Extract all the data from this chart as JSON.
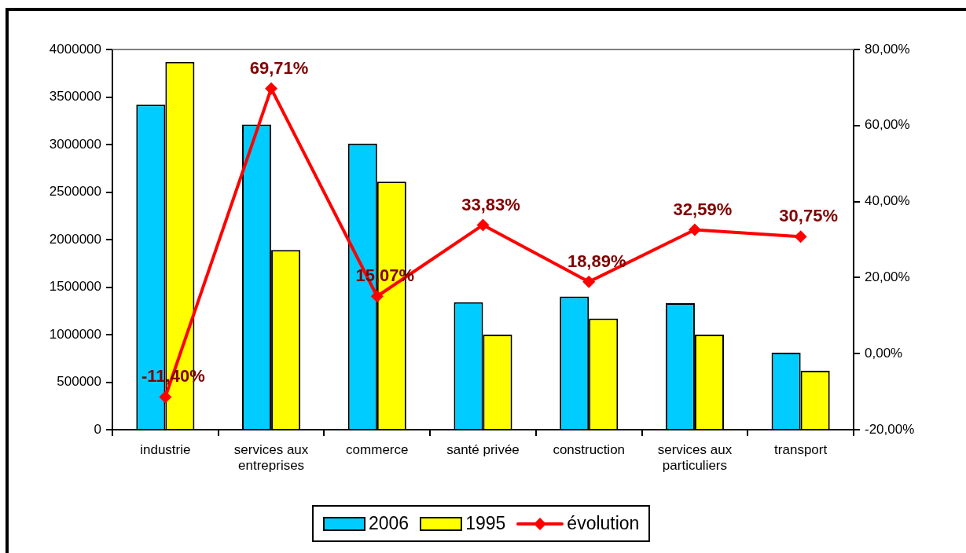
{
  "chart_data": {
    "type": "bar",
    "categories": [
      "industrie",
      "services aux entreprises",
      "commerce",
      "santé privée",
      "construction",
      "services aux particuliers",
      "transport"
    ],
    "series": [
      {
        "name": "2006",
        "color": "#00ccff",
        "values": [
          3420000,
          3210000,
          3010000,
          1340000,
          1400000,
          1330000,
          810000
        ]
      },
      {
        "name": "1995",
        "color": "#ffff00",
        "values": [
          3870000,
          1890000,
          2610000,
          1000000,
          1170000,
          1000000,
          620000
        ]
      },
      {
        "name": "évolution",
        "type": "line",
        "axis": "y2",
        "color": "#ff0000",
        "marker": "diamond",
        "line_style": "solid",
        "values": [
          -11.4,
          69.71,
          15.07,
          33.83,
          18.89,
          32.59,
          30.75
        ],
        "value_labels": [
          "-11,40%",
          "69,71%",
          "15,07%",
          "33,83%",
          "18,89%",
          "32,59%",
          "30,75%"
        ]
      }
    ],
    "ylim": [
      0,
      4000000
    ],
    "yticks": [
      0,
      500000,
      1000000,
      1500000,
      2000000,
      2500000,
      3000000,
      3500000,
      4000000
    ],
    "y2lim": [
      -20,
      80
    ],
    "y2ticks": [
      {
        "value": -20,
        "label": "-20,00%"
      },
      {
        "value": 0,
        "label": "0,00%"
      },
      {
        "value": 20,
        "label": "20,00%"
      },
      {
        "value": 40,
        "label": "40,00%"
      },
      {
        "value": 60,
        "label": "60,00%"
      },
      {
        "value": 80,
        "label": "80,00%"
      }
    ],
    "legend": "bottom"
  }
}
